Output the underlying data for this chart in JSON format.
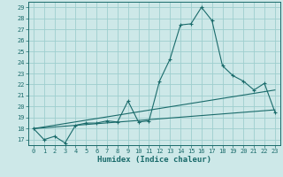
{
  "title": "",
  "xlabel": "Humidex (Indice chaleur)",
  "ylabel": "",
  "bg_color": "#cde8e8",
  "grid_color": "#9ecece",
  "line_color": "#1a6b6b",
  "xlim": [
    -0.5,
    23.5
  ],
  "ylim": [
    16.5,
    29.5
  ],
  "xticks": [
    0,
    1,
    2,
    3,
    4,
    5,
    6,
    7,
    8,
    9,
    10,
    11,
    12,
    13,
    14,
    15,
    16,
    17,
    18,
    19,
    20,
    21,
    22,
    23
  ],
  "yticks": [
    17,
    18,
    19,
    20,
    21,
    22,
    23,
    24,
    25,
    26,
    27,
    28,
    29
  ],
  "series1_x": [
    0,
    1,
    2,
    3,
    4,
    5,
    6,
    7,
    8,
    9,
    10,
    11,
    12,
    13,
    14,
    15,
    16,
    17,
    18,
    19,
    20,
    21,
    22,
    23
  ],
  "series1_y": [
    18,
    17,
    17.3,
    16.7,
    18.3,
    18.5,
    18.5,
    18.7,
    18.6,
    20.5,
    18.6,
    18.7,
    22.3,
    24.3,
    27.4,
    27.5,
    29.0,
    27.8,
    23.7,
    22.8,
    22.3,
    21.5,
    22.1,
    19.5
  ],
  "series2_x": [
    0,
    23
  ],
  "series2_y": [
    18,
    21.5
  ],
  "series3_x": [
    0,
    23
  ],
  "series3_y": [
    18,
    19.7
  ],
  "font_size_tick": 5.0,
  "font_size_label": 6.5
}
